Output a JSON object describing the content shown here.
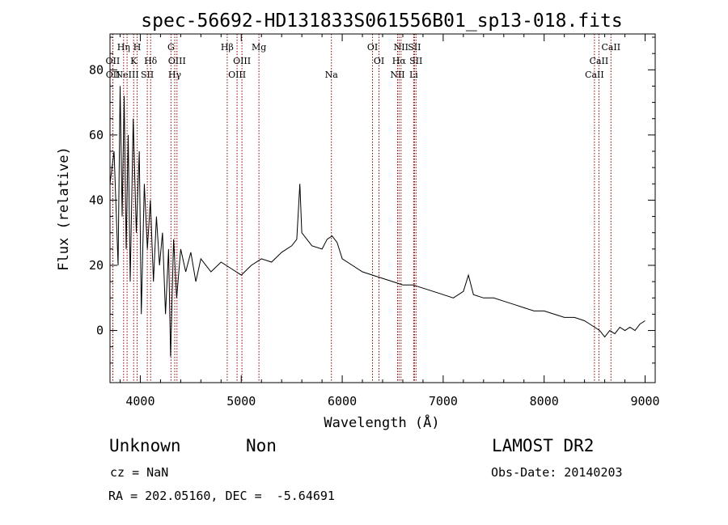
{
  "chart_data": {
    "type": "line",
    "title": "spec-56692-HD131833S061556B01_sp13-018.fits",
    "xlabel": "Wavelength (Å)",
    "ylabel": "Flux (relative)",
    "xlim": [
      3700,
      9100
    ],
    "ylim": [
      -16,
      91
    ],
    "xticks": [
      4000,
      5000,
      6000,
      7000,
      8000,
      9000
    ],
    "yticks": [
      0,
      20,
      40,
      60,
      80
    ],
    "grid": false,
    "line_color": "#000000",
    "marker_color": "#8b0000",
    "series": [
      {
        "values": [
          [
            3700,
            45
          ],
          [
            3740,
            55
          ],
          [
            3780,
            20
          ],
          [
            3800,
            75
          ],
          [
            3820,
            35
          ],
          [
            3840,
            72
          ],
          [
            3860,
            25
          ],
          [
            3880,
            60
          ],
          [
            3900,
            15
          ],
          [
            3930,
            65
          ],
          [
            3960,
            30
          ],
          [
            3990,
            55
          ],
          [
            4010,
            5
          ],
          [
            4040,
            45
          ],
          [
            4070,
            25
          ],
          [
            4100,
            40
          ],
          [
            4130,
            15
          ],
          [
            4160,
            35
          ],
          [
            4190,
            20
          ],
          [
            4220,
            30
          ],
          [
            4250,
            5
          ],
          [
            4280,
            25
          ],
          [
            4300,
            -8
          ],
          [
            4330,
            28
          ],
          [
            4360,
            10
          ],
          [
            4400,
            25
          ],
          [
            4450,
            18
          ],
          [
            4500,
            24
          ],
          [
            4550,
            15
          ],
          [
            4600,
            22
          ],
          [
            4700,
            18
          ],
          [
            4800,
            21
          ],
          [
            4900,
            19
          ],
          [
            5000,
            17
          ],
          [
            5100,
            20
          ],
          [
            5200,
            22
          ],
          [
            5300,
            21
          ],
          [
            5400,
            24
          ],
          [
            5500,
            26
          ],
          [
            5550,
            28
          ],
          [
            5580,
            45
          ],
          [
            5600,
            30
          ],
          [
            5650,
            28
          ],
          [
            5700,
            26
          ],
          [
            5800,
            25
          ],
          [
            5850,
            28
          ],
          [
            5900,
            29
          ],
          [
            5950,
            27
          ],
          [
            6000,
            22
          ],
          [
            6100,
            20
          ],
          [
            6200,
            18
          ],
          [
            6300,
            17
          ],
          [
            6400,
            16
          ],
          [
            6500,
            15
          ],
          [
            6600,
            14
          ],
          [
            6700,
            14
          ],
          [
            6800,
            13
          ],
          [
            6900,
            12
          ],
          [
            7000,
            11
          ],
          [
            7100,
            10
          ],
          [
            7200,
            12
          ],
          [
            7250,
            17
          ],
          [
            7300,
            11
          ],
          [
            7400,
            10
          ],
          [
            7500,
            10
          ],
          [
            7600,
            9
          ],
          [
            7700,
            8
          ],
          [
            7800,
            7
          ],
          [
            7900,
            6
          ],
          [
            8000,
            6
          ],
          [
            8100,
            5
          ],
          [
            8200,
            4
          ],
          [
            8300,
            4
          ],
          [
            8400,
            3
          ],
          [
            8450,
            2
          ],
          [
            8500,
            1
          ],
          [
            8550,
            0
          ],
          [
            8600,
            -2
          ],
          [
            8650,
            0
          ],
          [
            8700,
            -1
          ],
          [
            8750,
            1
          ],
          [
            8800,
            0
          ],
          [
            8850,
            1
          ],
          [
            8900,
            0
          ],
          [
            8950,
            2
          ],
          [
            9000,
            3
          ]
        ]
      }
    ],
    "lines": [
      {
        "name": "OII",
        "x": 3727,
        "tier": 2
      },
      {
        "name": "OII",
        "x": 3729,
        "tier": 3
      },
      {
        "name": "Hη",
        "x": 3835,
        "tier": 1
      },
      {
        "name": "H",
        "x": 3969,
        "tier": 1
      },
      {
        "name": "K",
        "x": 3934,
        "tier": 2
      },
      {
        "name": "NeIII",
        "x": 3869,
        "tier": 3
      },
      {
        "name": "SII",
        "x": 4069,
        "tier": 3
      },
      {
        "name": "Hδ",
        "x": 4102,
        "tier": 2
      },
      {
        "name": "G",
        "x": 4304,
        "tier": 1
      },
      {
        "name": "OIII",
        "x": 4363,
        "tier": 2
      },
      {
        "name": "Hγ",
        "x": 4341,
        "tier": 3
      },
      {
        "name": "Hβ",
        "x": 4861,
        "tier": 1
      },
      {
        "name": "OIII",
        "x": 4959,
        "tier": 3
      },
      {
        "name": "OIII",
        "x": 5007,
        "tier": 2
      },
      {
        "name": "Mg",
        "x": 5175,
        "tier": 1
      },
      {
        "name": "Na",
        "x": 5893,
        "tier": 3
      },
      {
        "name": "OI",
        "x": 6300,
        "tier": 1
      },
      {
        "name": "OI",
        "x": 6364,
        "tier": 2
      },
      {
        "name": "NII",
        "x": 6548,
        "tier": 3
      },
      {
        "name": "Hα",
        "x": 6563,
        "tier": 2
      },
      {
        "name": "NII",
        "x": 6583,
        "tier": 1
      },
      {
        "name": "SII",
        "x": 6716,
        "tier": 1
      },
      {
        "name": "SII",
        "x": 6731,
        "tier": 2
      },
      {
        "name": "Li",
        "x": 6708,
        "tier": 3
      },
      {
        "name": "CaII",
        "x": 8498,
        "tier": 3
      },
      {
        "name": "CaII",
        "x": 8542,
        "tier": 2
      },
      {
        "name": "CaII",
        "x": 8662,
        "tier": 1
      }
    ]
  },
  "info": {
    "object_class": "Unknown",
    "subclass": "Non",
    "survey": "LAMOST DR2",
    "redshift": "cz = NaN",
    "obs_date": "Obs-Date: 20140203",
    "coords": "RA = 202.05160, DEC =  -5.64691"
  }
}
